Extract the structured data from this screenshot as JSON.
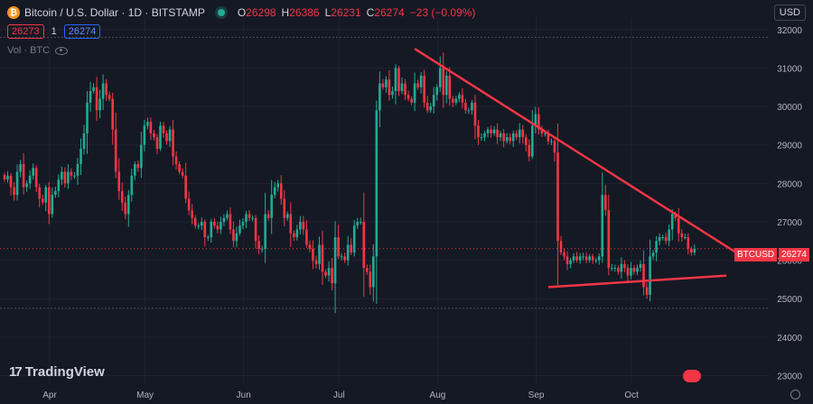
{
  "header": {
    "symbol_letter": "₿",
    "title": "Bitcoin / U.S. Dollar · 1D · BITSTAMP",
    "ohlc": [
      {
        "label": "O",
        "value": "26298"
      },
      {
        "label": "H",
        "value": "26386"
      },
      {
        "label": "L",
        "value": "26231"
      },
      {
        "label": "C",
        "value": "26274"
      }
    ],
    "change": "−23 (−0.09%)",
    "sell_price": "26273",
    "spread": "1",
    "buy_price": "26274",
    "volume_label": "Vol · BTC",
    "currency": "USD"
  },
  "logo_text": "TradingView",
  "last_price": {
    "label": "BTCUSD",
    "value": "26274"
  },
  "colors": {
    "up": "#22ab94",
    "down": "#f23645",
    "trendline": "#f23645",
    "background": "#151924"
  },
  "chart_data": {
    "type": "candlestick",
    "y_ticks": [
      32000,
      31000,
      30000,
      29000,
      28000,
      27000,
      26000,
      25000,
      24000,
      23000
    ],
    "ylim": [
      22800,
      32300
    ],
    "x_ticks": [
      "Apr",
      "May",
      "Jun",
      "Jul",
      "Aug",
      "Sep",
      "Oct"
    ],
    "dashed_levels": [
      31800,
      24750
    ],
    "series": [
      {
        "close": [
          28100,
          28200,
          27900,
          27700,
          28300,
          28500,
          27900,
          28000,
          28200,
          28400,
          27900,
          27600,
          27500,
          27900,
          27200,
          27700,
          27800,
          28100,
          28300,
          28000,
          28300,
          28200,
          28200,
          28500,
          28900,
          29300,
          30100,
          30400,
          30500,
          29900,
          30200,
          30600,
          30300,
          30200,
          29400,
          28300,
          27800,
          27500,
          27200,
          27700,
          28200,
          28500,
          28400,
          29000,
          29500,
          29600,
          29300,
          29200,
          28900,
          29500,
          29300,
          29100,
          29400,
          28700,
          28500,
          28300,
          28200,
          27600,
          27300,
          27100,
          26900,
          26900,
          27000,
          26600,
          26600,
          27000,
          26900,
          26800,
          27000,
          27100,
          27200,
          26800,
          26500,
          26700,
          26900,
          27000,
          27200,
          27100,
          27100,
          26500,
          26300,
          26300,
          27200,
          27100,
          27700,
          27900,
          28000,
          27600,
          27100,
          27200,
          26700,
          26600,
          26800,
          27000,
          26800,
          26400,
          26300,
          26000,
          25900,
          26400,
          25700,
          25600,
          25800,
          25400,
          26600,
          26100,
          26100,
          26000,
          26400,
          26200,
          26900,
          27000,
          27000,
          25800,
          25700,
          25300,
          26100,
          29900,
          30600,
          30500,
          30700,
          30300,
          30400,
          31000,
          30400,
          30600,
          30300,
          30200,
          30100,
          30600,
          30500,
          30800,
          30100,
          29900,
          30000,
          30300,
          30500,
          31000,
          30300,
          30800,
          30200,
          30100,
          30200,
          30300,
          30100,
          29900,
          29900,
          30100,
          29500,
          29200,
          29200,
          29300,
          29400,
          29300,
          29400,
          29200,
          29300,
          29100,
          29200,
          29100,
          29300,
          29200,
          29400,
          29200,
          29000,
          28700,
          29500,
          29800,
          29400,
          29300,
          29300,
          29100,
          29100,
          28800,
          26500,
          26200,
          26100,
          25900,
          26000,
          26100,
          26000,
          26100,
          26100,
          26000,
          26100,
          26000,
          26000,
          26100,
          27700,
          27300,
          25800,
          25800,
          25800,
          25700,
          25900,
          25800,
          25600,
          25800,
          25700,
          25800,
          25900,
          25300,
          25100,
          26100,
          26200,
          26500,
          26600,
          26600,
          26500,
          26800,
          27200,
          27100,
          26700,
          26600,
          26600,
          26300,
          26200,
          26300
        ]
      }
    ]
  }
}
